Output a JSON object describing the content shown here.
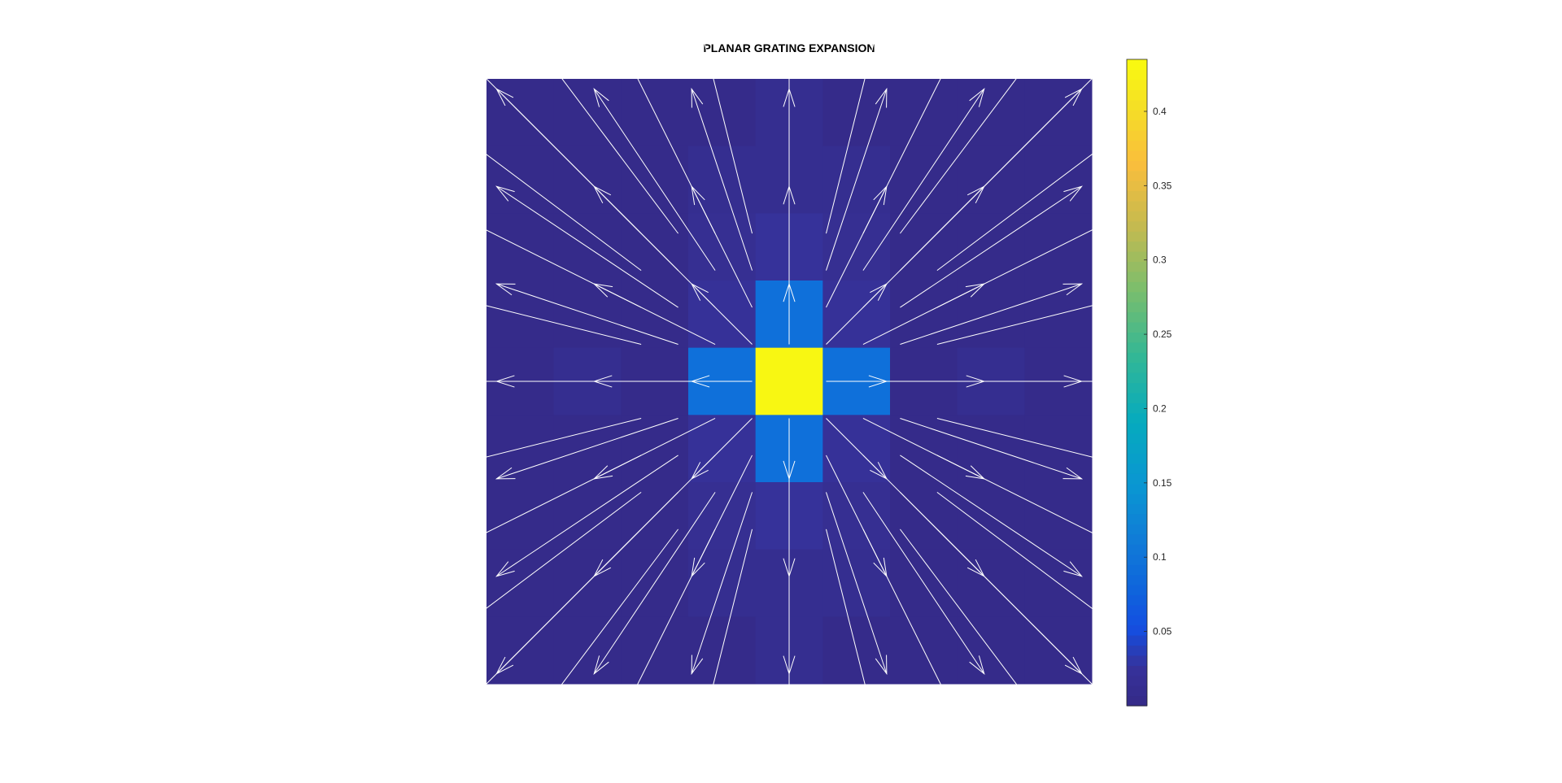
{
  "chart_data": {
    "type": "heatmap",
    "title": "PLANAR GRATING EXPANSION",
    "grid_size": [
      9,
      9
    ],
    "values": [
      [
        0.004,
        0.004,
        0.004,
        0.004,
        0.012,
        0.004,
        0.004,
        0.004,
        0.004
      ],
      [
        0.004,
        0.004,
        0.004,
        0.012,
        0.012,
        0.012,
        0.004,
        0.004,
        0.004
      ],
      [
        0.004,
        0.004,
        0.004,
        0.015,
        0.025,
        0.015,
        0.004,
        0.004,
        0.004
      ],
      [
        0.004,
        0.004,
        0.004,
        0.022,
        0.095,
        0.022,
        0.004,
        0.004,
        0.004
      ],
      [
        0.004,
        0.012,
        0.004,
        0.095,
        0.43,
        0.095,
        0.004,
        0.012,
        0.004
      ],
      [
        0.004,
        0.004,
        0.004,
        0.022,
        0.095,
        0.022,
        0.004,
        0.004,
        0.004
      ],
      [
        0.004,
        0.004,
        0.004,
        0.015,
        0.025,
        0.015,
        0.004,
        0.004,
        0.004
      ],
      [
        0.004,
        0.004,
        0.004,
        0.012,
        0.012,
        0.012,
        0.004,
        0.004,
        0.004
      ],
      [
        0.004,
        0.004,
        0.004,
        0.004,
        0.012,
        0.004,
        0.004,
        0.004,
        0.004
      ]
    ],
    "quiver": "radial expansion from center cell",
    "colorbar": {
      "colormap": "parula",
      "range": [
        0.0,
        0.435
      ],
      "ticks": [
        0.05,
        0.1,
        0.15,
        0.2,
        0.25,
        0.3,
        0.35,
        0.4
      ],
      "tick_labels": [
        "0.05",
        "0.1",
        "0.15",
        "0.2",
        "0.25",
        "0.3",
        "0.35",
        "0.4"
      ]
    },
    "arrow_color": "#ffffff",
    "grid": false
  }
}
